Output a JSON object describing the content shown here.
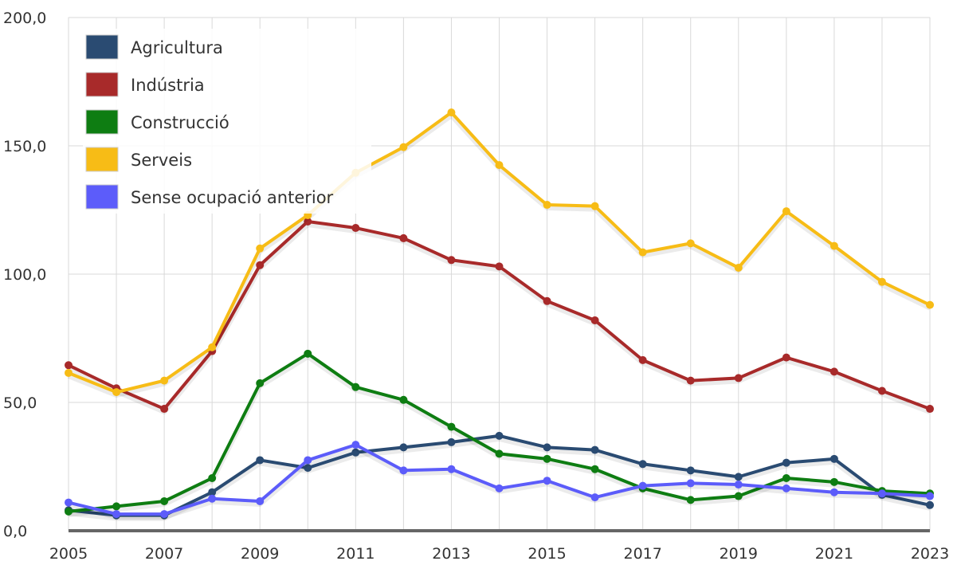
{
  "chart_data": {
    "type": "line",
    "x": [
      2005,
      2006,
      2007,
      2008,
      2009,
      2010,
      2011,
      2012,
      2013,
      2014,
      2015,
      2016,
      2017,
      2018,
      2019,
      2020,
      2021,
      2022,
      2023
    ],
    "x_tick_labels": [
      "2005",
      "2007",
      "2009",
      "2011",
      "2013",
      "2015",
      "2017",
      "2019",
      "2021",
      "2023"
    ],
    "y_tick_labels": [
      "0,0",
      "50,0",
      "100,0",
      "150,0",
      "200,0"
    ],
    "ylim": [
      0,
      200
    ],
    "grid": true,
    "legend_position": "top-left",
    "series": [
      {
        "name": "Agricultura",
        "color": "#2a4b72",
        "values": [
          8,
          6,
          6,
          15,
          27.5,
          24.5,
          30.5,
          32.5,
          34.5,
          37,
          32.5,
          31.5,
          26,
          23.5,
          21,
          26.5,
          28,
          14,
          10
        ]
      },
      {
        "name": "Indústria",
        "color": "#a82a2a",
        "values": [
          64.5,
          55.5,
          47.5,
          70,
          103.5,
          120.5,
          118,
          114,
          105.5,
          103,
          89.5,
          82,
          66.5,
          58.5,
          59.5,
          67.5,
          62,
          54.5,
          47.5
        ]
      },
      {
        "name": "Construcció",
        "color": "#0e7d12",
        "values": [
          7.5,
          9.5,
          11.5,
          20.5,
          57.5,
          69,
          56,
          51,
          40.5,
          30,
          28,
          24,
          16.5,
          12,
          13.5,
          20.5,
          19,
          15.5,
          14.5
        ]
      },
      {
        "name": "Serveis",
        "color": "#f7bc16",
        "values": [
          61.5,
          54,
          58.5,
          71.5,
          110,
          123,
          139.5,
          149.5,
          163,
          142.5,
          127,
          126.5,
          108.5,
          112,
          102.5,
          124.5,
          111,
          97,
          88
        ]
      },
      {
        "name": "Sense ocupació anterior",
        "color": "#5c5cfa",
        "values": [
          11,
          6.5,
          6.5,
          12.5,
          11.5,
          27.5,
          33.5,
          23.5,
          24,
          16.5,
          19.5,
          13,
          17.5,
          18.5,
          18,
          16.5,
          15,
          14.5,
          13.5
        ]
      }
    ]
  }
}
